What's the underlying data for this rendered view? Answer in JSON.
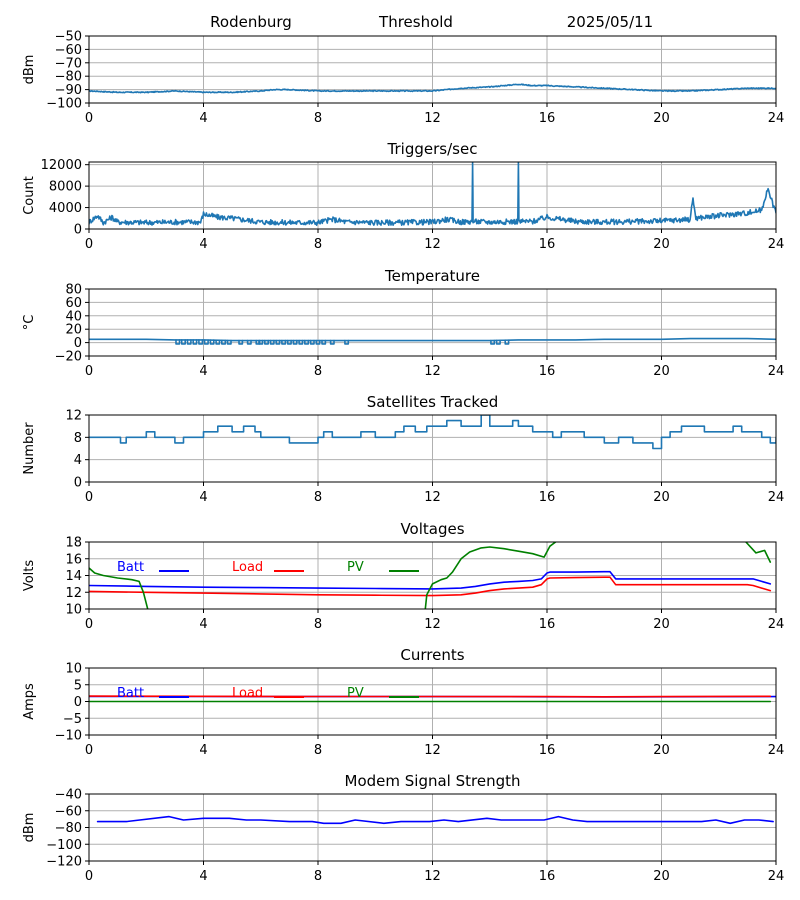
{
  "header": {
    "station": "Rodenburg",
    "mode": "Threshold",
    "date": "2025/05/11"
  },
  "colors": {
    "default": "#1f77b4",
    "batt": "#0000ff",
    "load": "#ff0000",
    "pv": "#008000"
  },
  "x_ticks": [
    0,
    4,
    8,
    12,
    16,
    20,
    24
  ],
  "chart_data": [
    {
      "id": "signal",
      "type": "line",
      "title": "",
      "ylabel": "dBm",
      "xlim": [
        0,
        24
      ],
      "ylim": [
        -100,
        -50
      ],
      "yticks": [
        -100,
        -90,
        -80,
        -70,
        -60,
        -50
      ],
      "series": [
        {
          "color_key": "default",
          "noise": 0.35,
          "x": [
            0,
            1,
            2,
            3,
            4,
            5,
            6,
            6.5,
            7,
            8,
            9,
            10,
            11,
            12,
            13,
            14,
            14.5,
            15,
            15.5,
            16,
            17,
            18,
            19,
            20,
            21,
            22,
            23,
            24
          ],
          "y": [
            -91,
            -92,
            -92,
            -91,
            -92,
            -92,
            -91,
            -90,
            -90,
            -91,
            -91,
            -91,
            -91,
            -91,
            -89,
            -88,
            -87,
            -86,
            -87,
            -87,
            -88,
            -89,
            -90,
            -91,
            -91,
            -90,
            -89,
            -89
          ]
        }
      ]
    },
    {
      "id": "triggers",
      "type": "line",
      "title": "Triggers/sec",
      "ylabel": "Count",
      "xlim": [
        0,
        24
      ],
      "ylim": [
        0,
        12500
      ],
      "yticks": [
        0,
        4000,
        8000,
        12000
      ],
      "series": [
        {
          "color_key": "default",
          "noise": 500,
          "x": [
            0,
            0.3,
            0.5,
            0.8,
            1,
            2,
            3,
            3.9,
            4,
            4.5,
            5,
            6,
            7,
            8,
            8.5,
            9,
            10,
            11,
            12,
            12.5,
            13,
            13.38,
            13.4,
            13.42,
            14,
            14.98,
            15,
            15.02,
            15.5,
            16,
            17,
            18,
            19,
            20,
            21,
            21.1,
            21.2,
            22,
            23,
            23.5,
            23.7,
            24
          ],
          "y": [
            1300,
            2500,
            1200,
            2200,
            1300,
            1200,
            1300,
            1300,
            2800,
            2200,
            2000,
            1300,
            1200,
            1200,
            1800,
            1300,
            1200,
            1200,
            1300,
            1800,
            1300,
            1400,
            12500,
            1400,
            1300,
            1400,
            12500,
            1400,
            1400,
            2200,
            1400,
            1300,
            1400,
            1500,
            1800,
            5800,
            2000,
            2500,
            3000,
            3500,
            7500,
            3000
          ]
        }
      ]
    },
    {
      "id": "temperature",
      "type": "line",
      "title": "Temperature",
      "ylabel": "°C",
      "xlim": [
        0,
        24
      ],
      "ylim": [
        -20,
        80
      ],
      "yticks": [
        -20,
        0,
        20,
        40,
        60,
        80
      ],
      "series": [
        {
          "color_key": "default",
          "noise": 0,
          "x": [
            0,
            2,
            3,
            4,
            5,
            6,
            7,
            8,
            9,
            10,
            11,
            12,
            13,
            14,
            15,
            16,
            17,
            18,
            19,
            20,
            21,
            22,
            23,
            24
          ],
          "y": [
            5,
            5,
            4,
            4,
            3,
            3,
            3,
            3,
            3,
            3,
            3,
            3,
            3,
            3,
            4,
            4,
            4,
            5,
            5,
            5,
            6,
            6,
            6,
            5
          ]
        }
      ],
      "dropouts": {
        "value": -2,
        "x": [
          3.1,
          3.3,
          3.5,
          3.7,
          3.9,
          4.1,
          4.3,
          4.5,
          4.7,
          4.9,
          5.3,
          5.6,
          5.9,
          6.0,
          6.2,
          6.4,
          6.6,
          6.8,
          7.0,
          7.2,
          7.4,
          7.6,
          7.8,
          8.0,
          8.2,
          8.5,
          9.0,
          14.1,
          14.3,
          14.6
        ]
      }
    },
    {
      "id": "satellites",
      "type": "line",
      "step": true,
      "title": "Satellites Tracked",
      "ylabel": "Number",
      "xlim": [
        0,
        24
      ],
      "ylim": [
        0,
        12
      ],
      "yticks": [
        0,
        4,
        8,
        12
      ],
      "series": [
        {
          "color_key": "default",
          "noise": 0,
          "x": [
            0,
            1,
            1.1,
            1.3,
            2,
            2.3,
            2.6,
            3,
            3.3,
            3.6,
            4,
            4.5,
            5,
            5.4,
            5.8,
            6,
            6.3,
            7,
            7.2,
            7.6,
            8,
            8.2,
            8.5,
            9,
            9.5,
            10,
            10.3,
            10.7,
            11,
            11.4,
            11.8,
            12,
            12.5,
            13,
            13.5,
            13.7,
            14,
            14.5,
            14.8,
            15,
            15.5,
            16,
            16.2,
            16.5,
            17,
            17.3,
            17.7,
            18,
            18.5,
            19,
            19.3,
            19.7,
            20,
            20.3,
            20.7,
            21,
            21.5,
            22,
            22.5,
            22.8,
            23,
            23.5,
            23.8,
            24
          ],
          "y": [
            8,
            8,
            7,
            8,
            9,
            8,
            8,
            7,
            8,
            8,
            9,
            10,
            9,
            10,
            9,
            8,
            8,
            7,
            7,
            7,
            8,
            9,
            8,
            8,
            9,
            8,
            8,
            9,
            10,
            9,
            10,
            10,
            11,
            10,
            10,
            12,
            10,
            10,
            11,
            10,
            9,
            9,
            8,
            9,
            9,
            8,
            8,
            7,
            8,
            7,
            7,
            6,
            8,
            9,
            10,
            10,
            9,
            9,
            10,
            9,
            9,
            8,
            7,
            8
          ]
        }
      ]
    },
    {
      "id": "voltages",
      "type": "line",
      "title": "Voltages",
      "ylabel": "Volts",
      "xlim": [
        0,
        24
      ],
      "ylim": [
        10,
        18
      ],
      "yticks": [
        10,
        12,
        14,
        16,
        18
      ],
      "legend": [
        "Batt",
        "Load",
        "PV"
      ],
      "series": [
        {
          "name": "Batt",
          "color_key": "batt",
          "noise": 0,
          "x": [
            0,
            2,
            4,
            6,
            8,
            10,
            12,
            13,
            13.5,
            14,
            14.5,
            15,
            15.5,
            15.8,
            16,
            16.1,
            17,
            18,
            18.2,
            18.4,
            19,
            20,
            21,
            22,
            23,
            23.2,
            23.5,
            23.8
          ],
          "y": [
            12.8,
            12.7,
            12.6,
            12.55,
            12.5,
            12.45,
            12.4,
            12.5,
            12.7,
            13.0,
            13.2,
            13.3,
            13.4,
            13.6,
            14.3,
            14.4,
            14.4,
            14.45,
            14.45,
            13.6,
            13.6,
            13.6,
            13.6,
            13.6,
            13.6,
            13.6,
            13.3,
            13.0
          ]
        },
        {
          "name": "Load",
          "color_key": "load",
          "noise": 0,
          "x": [
            0,
            2,
            4,
            6,
            8,
            10,
            12,
            13,
            13.5,
            14,
            14.5,
            15,
            15.5,
            15.8,
            16,
            16.1,
            17,
            18,
            18.2,
            18.4,
            19,
            20,
            21,
            22,
            23,
            23.2,
            23.5,
            23.8
          ],
          "y": [
            12.1,
            12.0,
            11.9,
            11.8,
            11.7,
            11.65,
            11.6,
            11.7,
            11.9,
            12.2,
            12.4,
            12.5,
            12.6,
            12.9,
            13.6,
            13.7,
            13.75,
            13.8,
            13.8,
            12.9,
            12.9,
            12.9,
            12.9,
            12.9,
            12.9,
            12.8,
            12.5,
            12.2
          ]
        },
        {
          "name": "PV",
          "color_key": "pv",
          "noise": 0,
          "segments": [
            {
              "x": [
                0,
                0.2,
                0.5,
                1,
                1.5,
                1.75,
                1.9,
                2.05
              ],
              "y": [
                14.9,
                14.3,
                14.0,
                13.7,
                13.5,
                13.3,
                12.0,
                10.0
              ]
            },
            {
              "x": [
                11.75,
                11.8,
                12.0,
                12.3,
                12.5,
                12.7,
                13.0,
                13.3,
                13.7,
                14.0,
                14.5,
                15.0,
                15.5,
                15.9,
                16.1,
                16.3
              ],
              "y": [
                10.0,
                11.7,
                13.0,
                13.5,
                13.7,
                14.4,
                16.0,
                16.8,
                17.3,
                17.4,
                17.2,
                16.9,
                16.6,
                16.2,
                17.5,
                18.0
              ]
            },
            {
              "x": [
                22.95,
                23.3,
                23.6,
                23.8
              ],
              "y": [
                18.0,
                16.7,
                17.0,
                15.6
              ]
            }
          ]
        }
      ]
    },
    {
      "id": "currents",
      "type": "line",
      "title": "Currents",
      "ylabel": "Amps",
      "xlim": [
        0,
        24
      ],
      "ylim": [
        -10,
        10
      ],
      "yticks": [
        -10,
        -5,
        0,
        5,
        10
      ],
      "legend": [
        "Batt",
        "Load",
        "PV"
      ],
      "series": [
        {
          "name": "Batt",
          "color_key": "batt",
          "noise": 0,
          "x": [
            0,
            4,
            8,
            12,
            16,
            18,
            20,
            24
          ],
          "y": [
            1.5,
            1.5,
            1.45,
            1.45,
            1.4,
            1.35,
            1.4,
            1.45
          ]
        },
        {
          "name": "Load",
          "color_key": "load",
          "noise": 0,
          "x": [
            0,
            4,
            8,
            12,
            16,
            18,
            20,
            23.8
          ],
          "y": [
            1.6,
            1.55,
            1.5,
            1.5,
            1.45,
            1.4,
            1.45,
            1.55
          ]
        },
        {
          "name": "PV",
          "color_key": "pv",
          "noise": 0,
          "x": [
            0,
            23.8
          ],
          "y": [
            0,
            0
          ]
        }
      ]
    },
    {
      "id": "modem",
      "type": "line",
      "title": "Modem Signal Strength",
      "ylabel": "dBm",
      "xlim": [
        0,
        24
      ],
      "ylim": [
        -120,
        -40
      ],
      "yticks": [
        -120,
        -100,
        -80,
        -60,
        -40
      ],
      "series": [
        {
          "color_key": "batt",
          "noise": 0,
          "x": [
            0.3,
            1.3,
            2.8,
            3.3,
            4.0,
            4.9,
            5.5,
            6.0,
            7.0,
            7.8,
            8.2,
            8.8,
            9.3,
            10.3,
            10.9,
            11.9,
            12.4,
            12.9,
            13.9,
            14.4,
            15.4,
            15.9,
            16.4,
            16.9,
            17.4,
            18.4,
            19.4,
            20.4,
            21.4,
            21.9,
            22.4,
            22.9,
            23.4,
            23.9
          ],
          "y": [
            -73,
            -73,
            -67,
            -71,
            -69,
            -69,
            -71,
            -71,
            -73,
            -73,
            -75,
            -75,
            -71,
            -75,
            -73,
            -73,
            -71,
            -73,
            -69,
            -71,
            -71,
            -71,
            -67,
            -71,
            -73,
            -73,
            -73,
            -73,
            -73,
            -71,
            -75,
            -71,
            -71,
            -73
          ]
        }
      ]
    }
  ]
}
